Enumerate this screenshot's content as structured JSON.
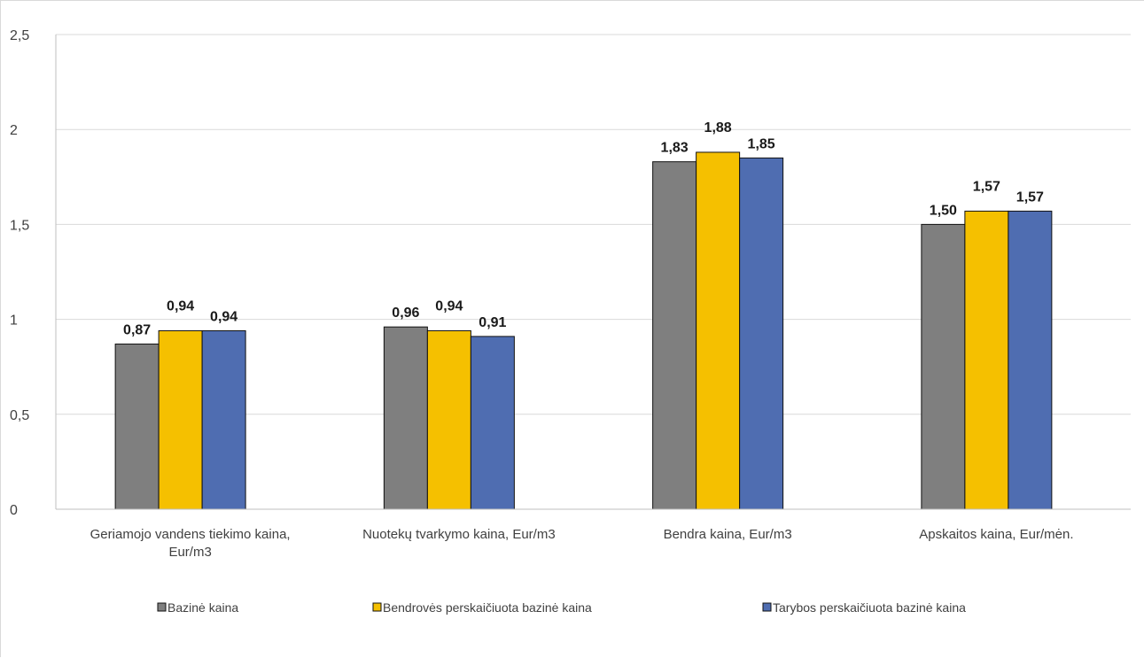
{
  "chart_data": {
    "type": "bar",
    "categories": [
      [
        "Geriamojo vandens tiekimo kaina,",
        "Eur/m3"
      ],
      [
        "Nuotekų tvarkymo kaina, Eur/m3"
      ],
      [
        "Bendra kaina, Eur/m3"
      ],
      [
        "Apskaitos kaina, Eur/mėn."
      ]
    ],
    "series": [
      {
        "name": "Bazinė kaina",
        "color": "#7f7f7f",
        "values": [
          0.87,
          0.96,
          1.83,
          1.5
        ],
        "labels": [
          "0,87",
          "0,96",
          "1,83",
          "1,50"
        ]
      },
      {
        "name": "Bendrovės perskaičiuota bazinė kaina",
        "color": "#f5c000",
        "values": [
          0.94,
          0.94,
          1.88,
          1.57
        ],
        "labels": [
          "0,94",
          "0,94",
          "1,88",
          "1,57"
        ]
      },
      {
        "name": "Tarybos perskaičiuota bazinė kaina",
        "color": "#4f6db1",
        "values": [
          0.94,
          0.91,
          1.85,
          1.57
        ],
        "labels": [
          "0,94",
          "0,91",
          "1,85",
          "1,57"
        ]
      }
    ],
    "ylim": [
      0,
      2.5
    ],
    "yticks": [
      0,
      0.5,
      1,
      1.5,
      2,
      2.5
    ],
    "ytick_labels": [
      "0",
      "0,5",
      "1",
      "1,5",
      "2",
      "2,5"
    ],
    "grid": true,
    "legend_position": "bottom"
  }
}
